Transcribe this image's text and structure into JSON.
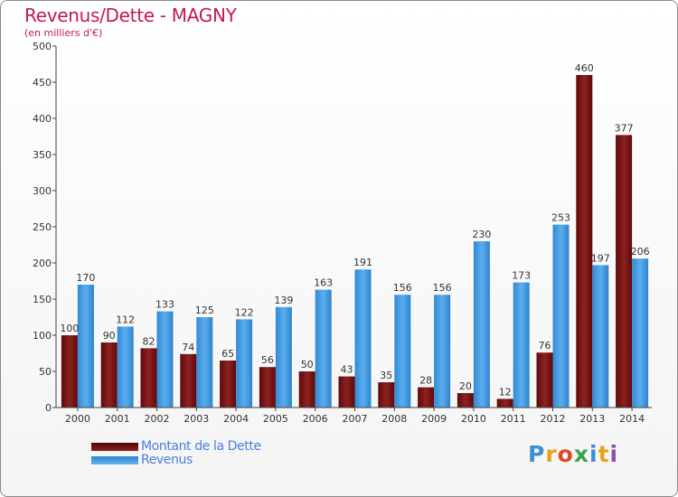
{
  "chart_data": {
    "type": "bar",
    "title": "Revenus/Dette - MAGNY",
    "subtitle": "(en milliers d'€)",
    "xlabel": "",
    "ylabel": "",
    "ylim": [
      0,
      500
    ],
    "yticks": [
      0,
      50,
      100,
      150,
      200,
      250,
      300,
      350,
      400,
      450,
      500
    ],
    "grid": false,
    "legend_position": "bottom-left",
    "categories": [
      "2000",
      "2001",
      "2002",
      "2003",
      "2004",
      "2005",
      "2006",
      "2007",
      "2008",
      "2009",
      "2010",
      "2011",
      "2012",
      "2013",
      "2014"
    ],
    "series": [
      {
        "name": "Montant de la Dette",
        "color": "#7a1414",
        "values": [
          100,
          90,
          82,
          74,
          65,
          56,
          50,
          43,
          35,
          28,
          20,
          12,
          76,
          460,
          377
        ]
      },
      {
        "name": "Revenus",
        "color": "#3d95db",
        "values": [
          170,
          112,
          133,
          125,
          122,
          139,
          163,
          191,
          156,
          156,
          230,
          173,
          253,
          197,
          206
        ]
      }
    ]
  },
  "logo": {
    "letters": [
      {
        "char": "P",
        "color": "#3e8ed0"
      },
      {
        "char": "r",
        "color": "#e6a21b"
      },
      {
        "char": "o",
        "color": "#d94a2a"
      },
      {
        "char": "x",
        "color": "#3aa64a"
      },
      {
        "char": "i",
        "color": "#3e8ed0"
      },
      {
        "char": "t",
        "color": "#e6a21b"
      },
      {
        "char": "i",
        "color": "#8a4fb0"
      }
    ]
  }
}
